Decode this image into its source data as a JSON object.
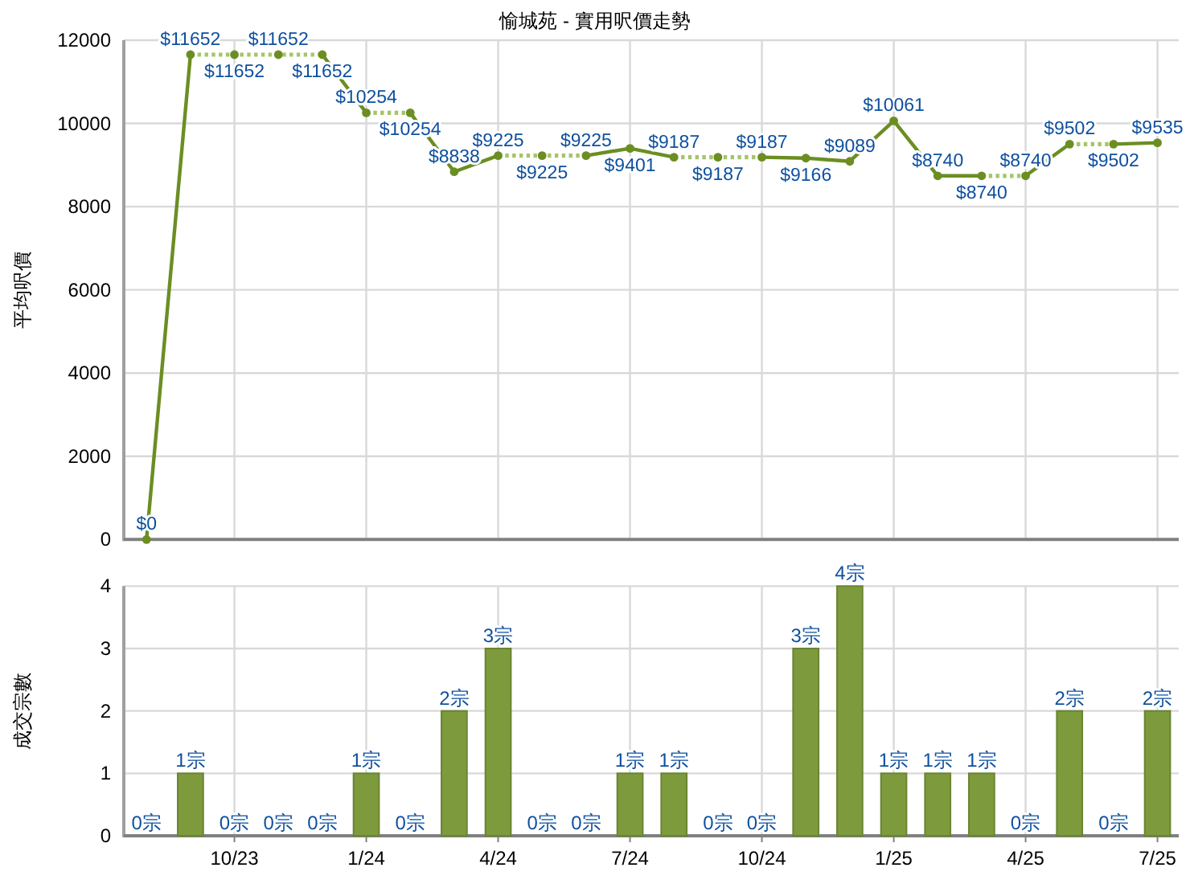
{
  "chart_data": [
    {
      "type": "line",
      "title": "愉城苑 - 實用呎價走勢",
      "ylabel": "平均呎價",
      "xlim": [
        "2023-07-16",
        "2025-07-16"
      ],
      "xticks": [
        {
          "value": "2023-10",
          "label": null
        },
        {
          "value": "2024-01",
          "label": null
        },
        {
          "value": "2024-04",
          "label": null
        },
        {
          "value": "2024-07",
          "label": null
        },
        {
          "value": "2024-10",
          "label": null
        },
        {
          "value": "2025-01",
          "label": null
        },
        {
          "value": "2025-04",
          "label": null
        },
        {
          "value": "2025-07",
          "label": null
        }
      ],
      "ylim": [
        0,
        12000
      ],
      "yticks": [
        0,
        2000,
        4000,
        6000,
        8000,
        10000,
        12000
      ],
      "grid": true,
      "tick_labels": "y",
      "series": [
        {
          "color": "#6b8e23",
          "line_style": "solid",
          "x": [
            "2023-08",
            "2023-09"
          ],
          "values": [
            0,
            11652
          ]
        },
        {
          "color": "#a6c46a",
          "line_style": "dotted",
          "x": [
            "2023-09",
            "2023-10",
            "2023-11",
            "2023-12"
          ],
          "values": [
            11652,
            11652,
            11652,
            11652
          ]
        },
        {
          "color": "#6b8e23",
          "line_style": "solid",
          "x": [
            "2023-12",
            "2024-01"
          ],
          "values": [
            11652,
            10254
          ]
        },
        {
          "color": "#a6c46a",
          "line_style": "dotted",
          "x": [
            "2024-01",
            "2024-02"
          ],
          "values": [
            10254,
            10254
          ]
        },
        {
          "color": "#6b8e23",
          "line_style": "solid",
          "x": [
            "2024-02",
            "2024-03",
            "2024-04"
          ],
          "values": [
            10254,
            8838,
            9225
          ]
        },
        {
          "color": "#a6c46a",
          "line_style": "dotted",
          "x": [
            "2024-04",
            "2024-05",
            "2024-06"
          ],
          "values": [
            9225,
            9225,
            9225
          ]
        },
        {
          "color": "#6b8e23",
          "line_style": "solid",
          "x": [
            "2024-06",
            "2024-07",
            "2024-08"
          ],
          "values": [
            9225,
            9401,
            9187
          ]
        },
        {
          "color": "#a6c46a",
          "line_style": "dotted",
          "x": [
            "2024-08",
            "2024-09",
            "2024-10"
          ],
          "values": [
            9187,
            9187,
            9187
          ]
        },
        {
          "color": "#6b8e23",
          "line_style": "solid",
          "x": [
            "2024-10",
            "2024-11",
            "2024-12",
            "2025-01",
            "2025-02",
            "2025-03"
          ],
          "values": [
            9187,
            9166,
            9089,
            10061,
            8740,
            8740
          ]
        },
        {
          "color": "#a6c46a",
          "line_style": "dotted",
          "x": [
            "2025-03",
            "2025-04"
          ],
          "values": [
            8740,
            8740
          ]
        },
        {
          "color": "#6b8e23",
          "line_style": "solid",
          "x": [
            "2025-04",
            "2025-05"
          ],
          "values": [
            8740,
            9502
          ]
        },
        {
          "color": "#a6c46a",
          "line_style": "dotted",
          "x": [
            "2025-05",
            "2025-06"
          ],
          "values": [
            9502,
            9502
          ]
        },
        {
          "color": "#6b8e23",
          "line_style": "solid",
          "x": [
            "2025-06",
            "2025-07"
          ],
          "values": [
            9502,
            9535
          ]
        },
        {
          "type": "scatter",
          "marker": "circle",
          "color": "#6b8e23",
          "x": [
            "2023-08",
            "2023-09",
            "2023-10",
            "2023-11",
            "2023-12",
            "2024-01",
            "2024-02",
            "2024-03",
            "2024-04",
            "2024-05",
            "2024-06",
            "2024-07",
            "2024-08",
            "2024-09",
            "2024-10",
            "2024-11",
            "2024-12",
            "2025-01",
            "2025-02",
            "2025-03",
            "2025-04",
            "2025-05",
            "2025-06",
            "2025-07"
          ],
          "values": [
            0,
            11652,
            11652,
            11652,
            11652,
            10254,
            10254,
            8838,
            9225,
            9225,
            9225,
            9401,
            9187,
            9187,
            9187,
            9166,
            9089,
            10061,
            8740,
            8740,
            8740,
            9502,
            9502,
            9535
          ],
          "value_labels": [
            "$0",
            "$11652",
            "$11652",
            "$11652",
            "$11652",
            "$10254",
            "$10254",
            "$8838",
            "$9225",
            "$9225",
            "$9225",
            "$9401",
            "$9187",
            "$9187",
            "$9187",
            "$9166",
            "$9089",
            "$10061",
            "$8740",
            "$8740",
            "$8740",
            "$9502",
            "$9502",
            "$9535"
          ]
        }
      ]
    },
    {
      "type": "bar",
      "ylabel": "成交宗數",
      "color": "#7d9b3c",
      "x": [
        "2023-08",
        "2023-09",
        "2023-10",
        "2023-11",
        "2023-12",
        "2024-01",
        "2024-02",
        "2024-03",
        "2024-04",
        "2024-05",
        "2024-06",
        "2024-07",
        "2024-08",
        "2024-09",
        "2024-10",
        "2024-11",
        "2024-12",
        "2025-01",
        "2025-02",
        "2025-03",
        "2025-04",
        "2025-05",
        "2025-06",
        "2025-07"
      ],
      "values": [
        0,
        1,
        0,
        0,
        0,
        1,
        0,
        2,
        3,
        0,
        0,
        1,
        1,
        0,
        0,
        3,
        4,
        1,
        1,
        1,
        0,
        2,
        0,
        2
      ],
      "value_labels": [
        "0宗",
        "1宗",
        "0宗",
        "0宗",
        "0宗",
        "1宗",
        "0宗",
        "2宗",
        "3宗",
        "0宗",
        "0宗",
        "1宗",
        "1宗",
        "0宗",
        "0宗",
        "3宗",
        "4宗",
        "1宗",
        "1宗",
        "1宗",
        "0宗",
        "2宗",
        "0宗",
        "2宗"
      ],
      "xlim": [
        "2023-07-16",
        "2025-07-16"
      ],
      "xticks": [
        {
          "value": "2023-10",
          "label": "10/23"
        },
        {
          "value": "2024-01",
          "label": "1/24"
        },
        {
          "value": "2024-04",
          "label": "4/24"
        },
        {
          "value": "2024-07",
          "label": "7/24"
        },
        {
          "value": "2024-10",
          "label": "10/24"
        },
        {
          "value": "2025-01",
          "label": "1/25"
        },
        {
          "value": "2025-04",
          "label": "4/25"
        },
        {
          "value": "2025-07",
          "label": "7/25"
        }
      ],
      "ylim": [
        0,
        4
      ],
      "yticks": [
        0,
        1,
        2,
        3,
        4
      ],
      "grid": true
    }
  ]
}
